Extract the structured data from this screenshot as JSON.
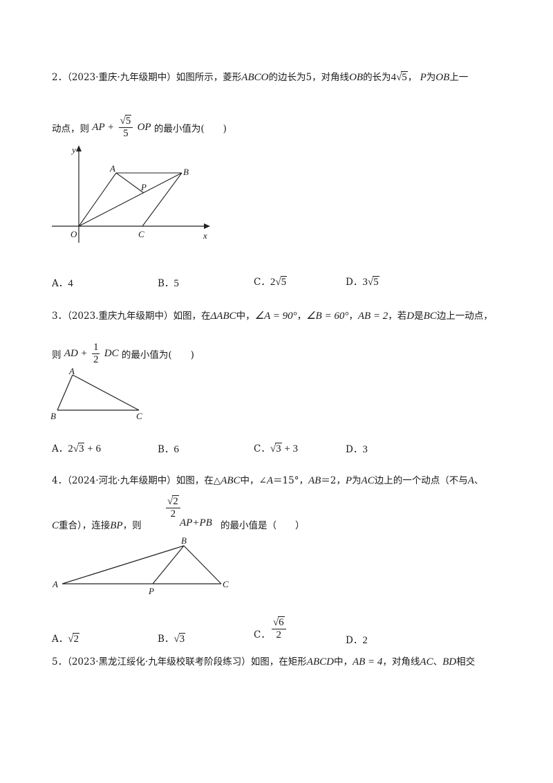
{
  "q2": {
    "num": "2．",
    "source": "（2023·重庆·九年级期中）",
    "t1": "如图所示，菱形",
    "rhombus": "ABCO",
    "t2": "的边长为",
    "side": "5",
    "t3": "，对角线",
    "diag": "OB",
    "t4": "的长为",
    "len_coef": "4",
    "len_rad": "5",
    "t5": "，",
    "p": "P",
    "t6": "为",
    "ob": "OB",
    "t7": "上一",
    "line2_a": "动点，则",
    "expr_ap": "AP +",
    "frac_num_rad": "5",
    "frac_den": "5",
    "expr_op": "OP",
    "line2_b": "的最小值为",
    "paren": "(　　)",
    "fig": {
      "y": "y",
      "x": "x",
      "A": "A",
      "B": "B",
      "P": "P",
      "O": "O",
      "C": "C"
    },
    "options": [
      {
        "label": "A．",
        "val": "4"
      },
      {
        "label": "B．",
        "val": "5"
      },
      {
        "label": "C．",
        "coef": "2",
        "rad": "5"
      },
      {
        "label": "D．",
        "coef": "3",
        "rad": "5"
      }
    ]
  },
  "q3": {
    "num": "3．",
    "source": "（2023.重庆九年级期中）",
    "t1": "如图，在",
    "tri": "ΔABC",
    "t2": "中，",
    "angA": "∠A = 90°",
    "sep1": "，",
    "angB": "∠B = 60°",
    "sep2": "，",
    "ab": "AB = 2",
    "t3": "，若",
    "d": "D",
    "t4": "是",
    "bc": "BC",
    "t5": "边上一动点，",
    "line2_a": "则",
    "expr_ad": "AD +",
    "frac_num": "1",
    "frac_den": "2",
    "expr_dc": "DC",
    "line2_b": "的最小值为",
    "paren": "(　　)",
    "fig": {
      "A": "A",
      "B": "B",
      "C": "C"
    },
    "options": [
      {
        "label": "A．",
        "a": "2",
        "rad": "3",
        "b": " + 6"
      },
      {
        "label": "B．",
        "val": "6"
      },
      {
        "label": "C．",
        "rad": "3",
        "b": " + 3"
      },
      {
        "label": "D．",
        "val": "3"
      }
    ]
  },
  "q4": {
    "num": "4．",
    "source": "（2024·河北·九年级期中）",
    "t1": "如图，在△",
    "tri": "ABC",
    "t2": "中，∠",
    "a": "A",
    "t3": "＝15°，",
    "ab": "AB",
    "t4": "＝2，",
    "p": "P",
    "t5": "为",
    "ac": "AC",
    "t6": "边上的一个动点（不与",
    "a2": "A",
    "t7": "、",
    "frac_num_rad": "2",
    "frac_den": "2",
    "line2_c": "C",
    "line2_a": "重合），连接",
    "bp": "BP",
    "line2_b": "，则",
    "expr": "AP+PB",
    "line2_d": "的最小值是（　　）",
    "fig": {
      "A": "A",
      "B": "B",
      "P": "P",
      "C": "C"
    },
    "options": [
      {
        "label": "A．",
        "rad": "2"
      },
      {
        "label": "B．",
        "rad": "3"
      },
      {
        "label": "C．",
        "num_rad": "6",
        "den": "2"
      },
      {
        "label": "D．",
        "val": "2"
      }
    ]
  },
  "q5": {
    "num": "5．",
    "source": "（2023·黑龙江绥化·九年级校联考阶段练习）",
    "t1": "如图，在矩形",
    "rect": "ABCD",
    "t2": "中，",
    "ab": "AB = 4",
    "t3": "，对角线",
    "ac": "AC",
    "t4": "、",
    "bd": "BD",
    "t5": "相交"
  }
}
